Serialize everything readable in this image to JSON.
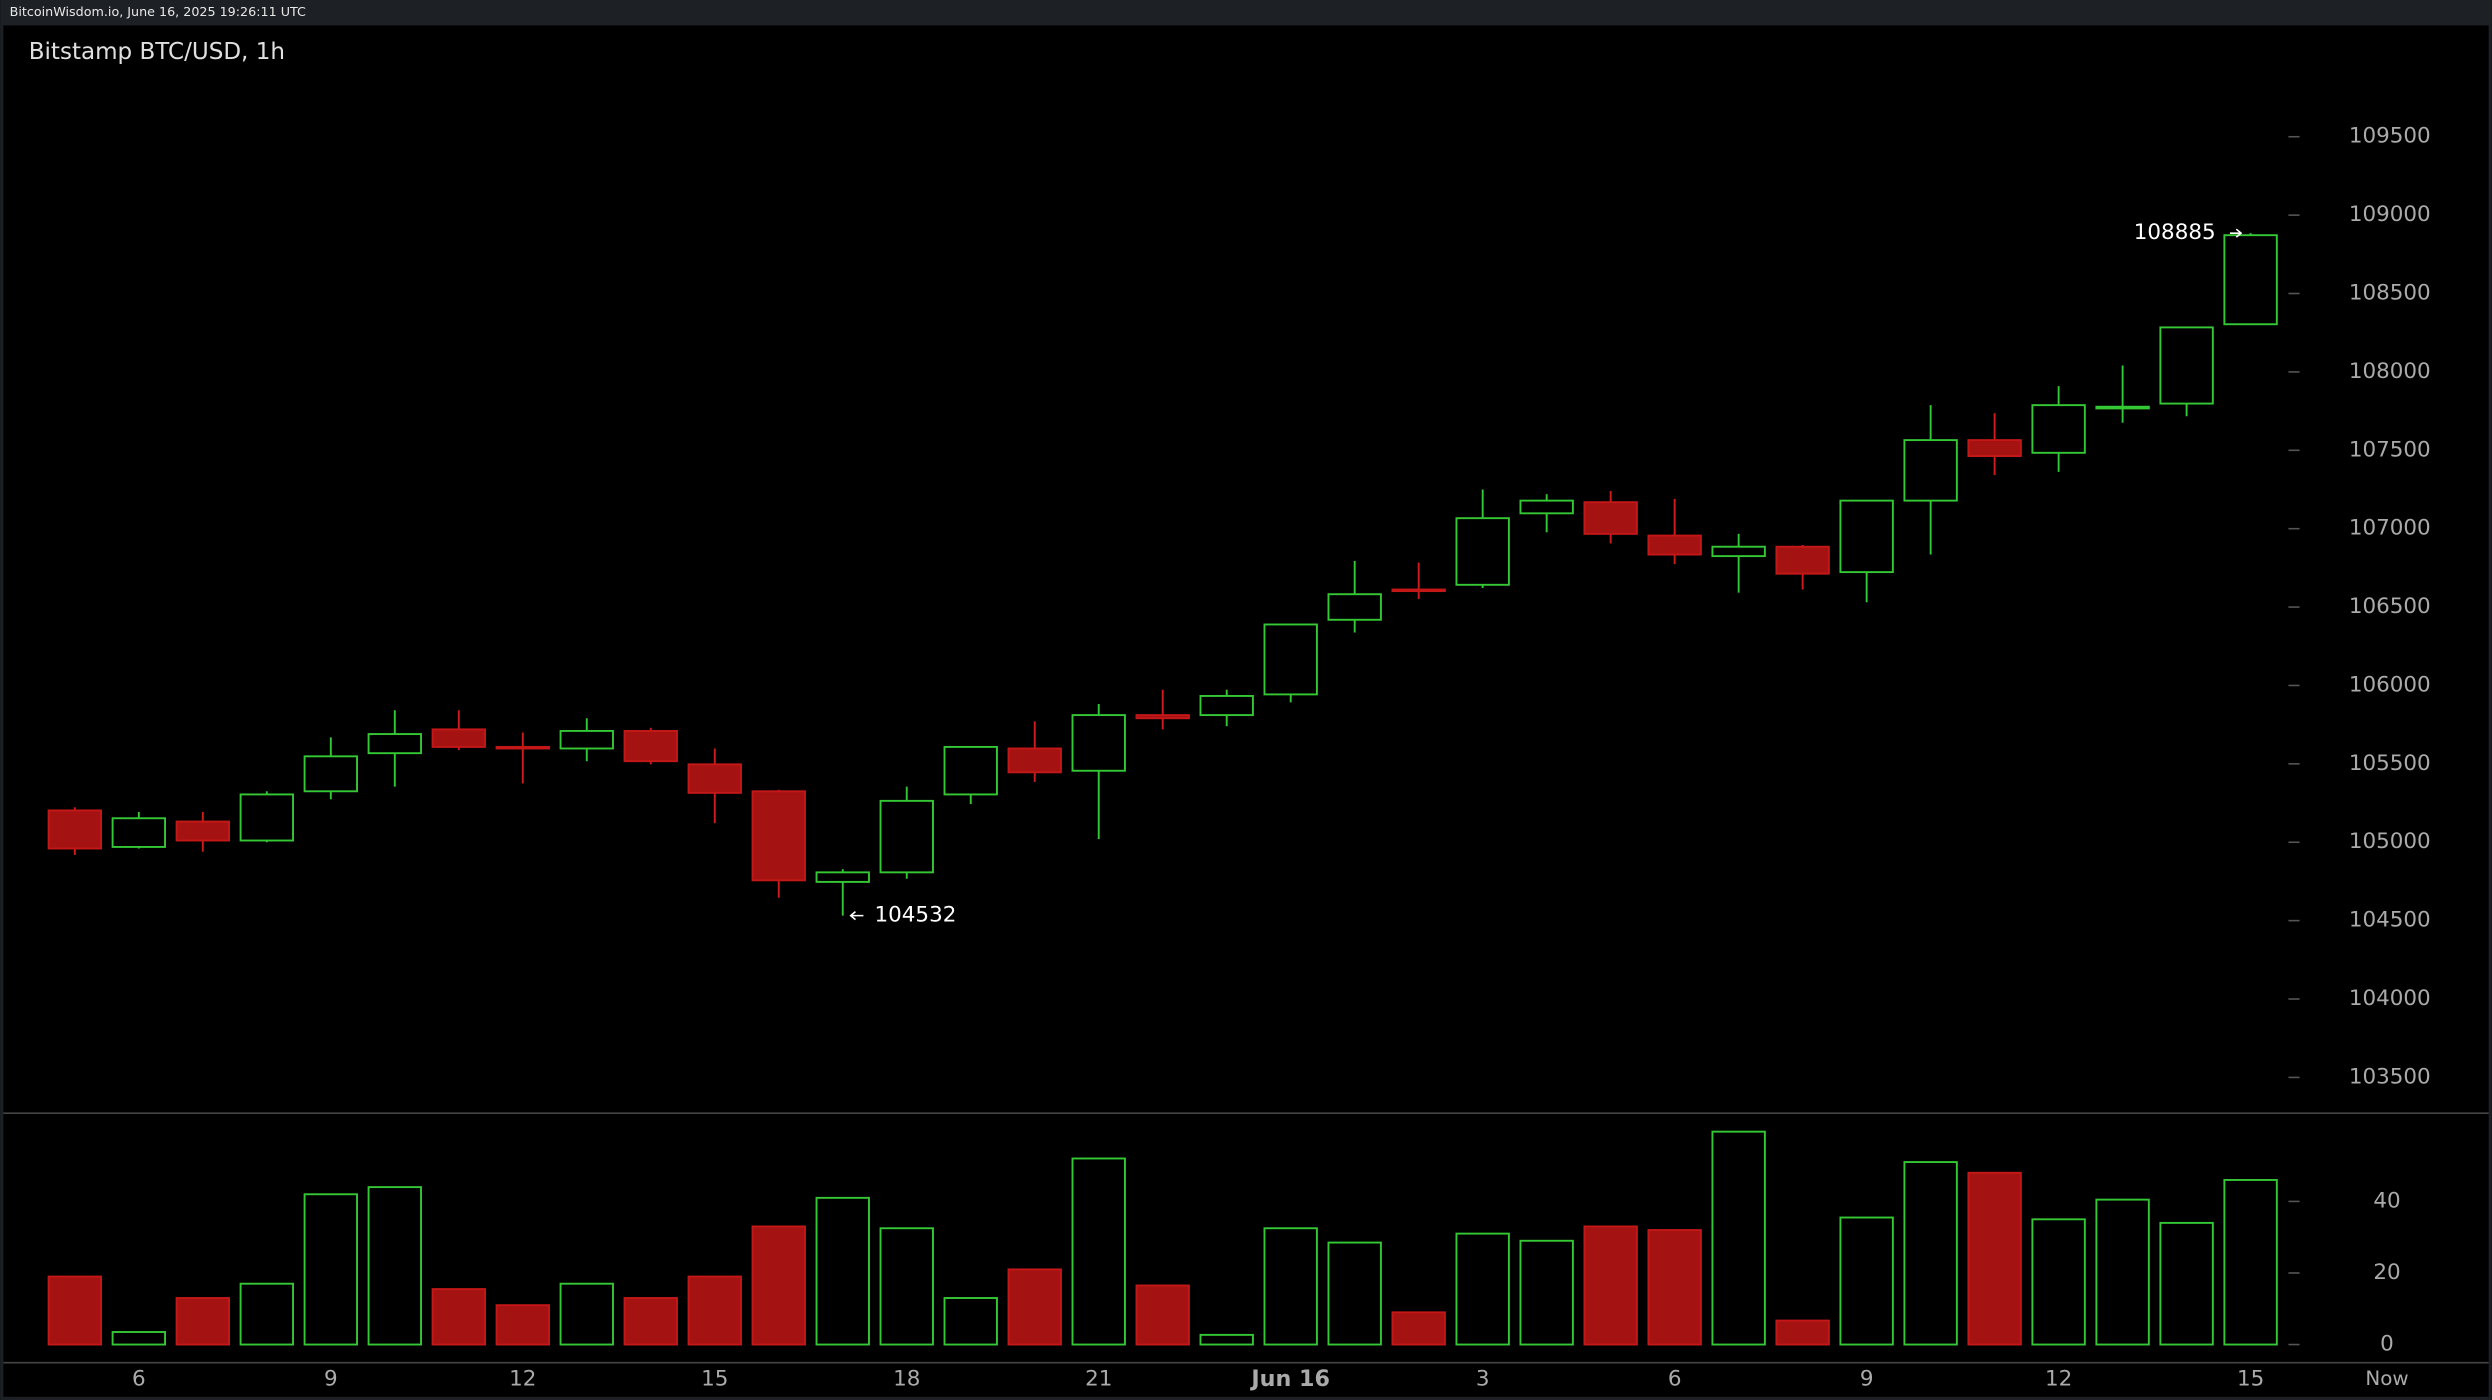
{
  "header": "BitcoinWisdom.io, June 16, 2025 19:26:11 UTC",
  "chart_data": {
    "type": "candlestick",
    "title": "Bitstamp BTC/USD, 1h",
    "categories": [
      null,
      "6",
      null,
      null,
      "9",
      null,
      null,
      "12",
      null,
      null,
      "15",
      null,
      null,
      "18",
      null,
      null,
      "21",
      null,
      null,
      "Jun 16",
      null,
      null,
      "3",
      null,
      null,
      "6",
      null,
      null,
      "9",
      null,
      null,
      "12",
      null,
      null,
      "15"
    ],
    "x_end_label": "Now",
    "open": [
      105203,
      104970,
      105132,
      105011,
      105325,
      105568,
      105720,
      105608,
      105598,
      105710,
      105497,
      105325,
      104747,
      104808,
      105305,
      105598,
      105456,
      105811,
      105811,
      105943,
      106419,
      106612,
      106642,
      107098,
      107169,
      106956,
      106825,
      106885,
      106723,
      107179,
      107565,
      107484,
      107767,
      107798,
      108304
    ],
    "high": [
      105223,
      105193,
      105193,
      105325,
      105669,
      105842,
      105842,
      105700,
      105791,
      105730,
      105598,
      105335,
      104828,
      105355,
      105608,
      105771,
      105882,
      105973,
      105973,
      106389,
      106794,
      106784,
      107250,
      107220,
      107240,
      107190,
      106967,
      106896,
      107179,
      107788,
      107737,
      107909,
      108041,
      108284,
      108885
    ],
    "low": [
      104919,
      104960,
      104940,
      105000,
      105274,
      105355,
      105588,
      105375,
      105517,
      105497,
      105122,
      104646,
      104532,
      104767,
      105244,
      105385,
      105021,
      105720,
      105740,
      105892,
      106338,
      106551,
      106622,
      106977,
      106906,
      106774,
      106592,
      106612,
      106531,
      106835,
      107342,
      107362,
      107676,
      107717,
      108304
    ],
    "close": [
      104960,
      105153,
      105011,
      105305,
      105548,
      105690,
      105608,
      105598,
      105710,
      105517,
      105315,
      104757,
      104808,
      105264,
      105608,
      105446,
      105811,
      105791,
      105933,
      106389,
      106582,
      106602,
      107067,
      107179,
      106967,
      106835,
      106885,
      106713,
      107179,
      107565,
      107463,
      107788,
      107778,
      108284,
      108872
    ],
    "up_color": "#35c835",
    "down_color": "#a51212",
    "ylim": [
      103277,
      110210
    ],
    "yticks": [
      103500,
      104000,
      104500,
      105000,
      105500,
      106000,
      106500,
      107000,
      107500,
      108000,
      108500,
      109000,
      109500
    ],
    "volume": {
      "values": [
        19,
        3.5,
        13,
        17,
        42,
        44,
        15.5,
        11,
        17,
        13,
        19,
        33,
        41,
        32.5,
        13,
        21,
        52,
        16.5,
        2.7,
        32.5,
        28.5,
        9,
        31,
        29,
        33,
        32,
        59.5,
        6.7,
        35.5,
        51,
        48,
        35,
        40.5,
        34,
        46
      ],
      "ylim": [
        -4.4,
        64
      ],
      "yticks": [
        0,
        20,
        40
      ]
    }
  }
}
